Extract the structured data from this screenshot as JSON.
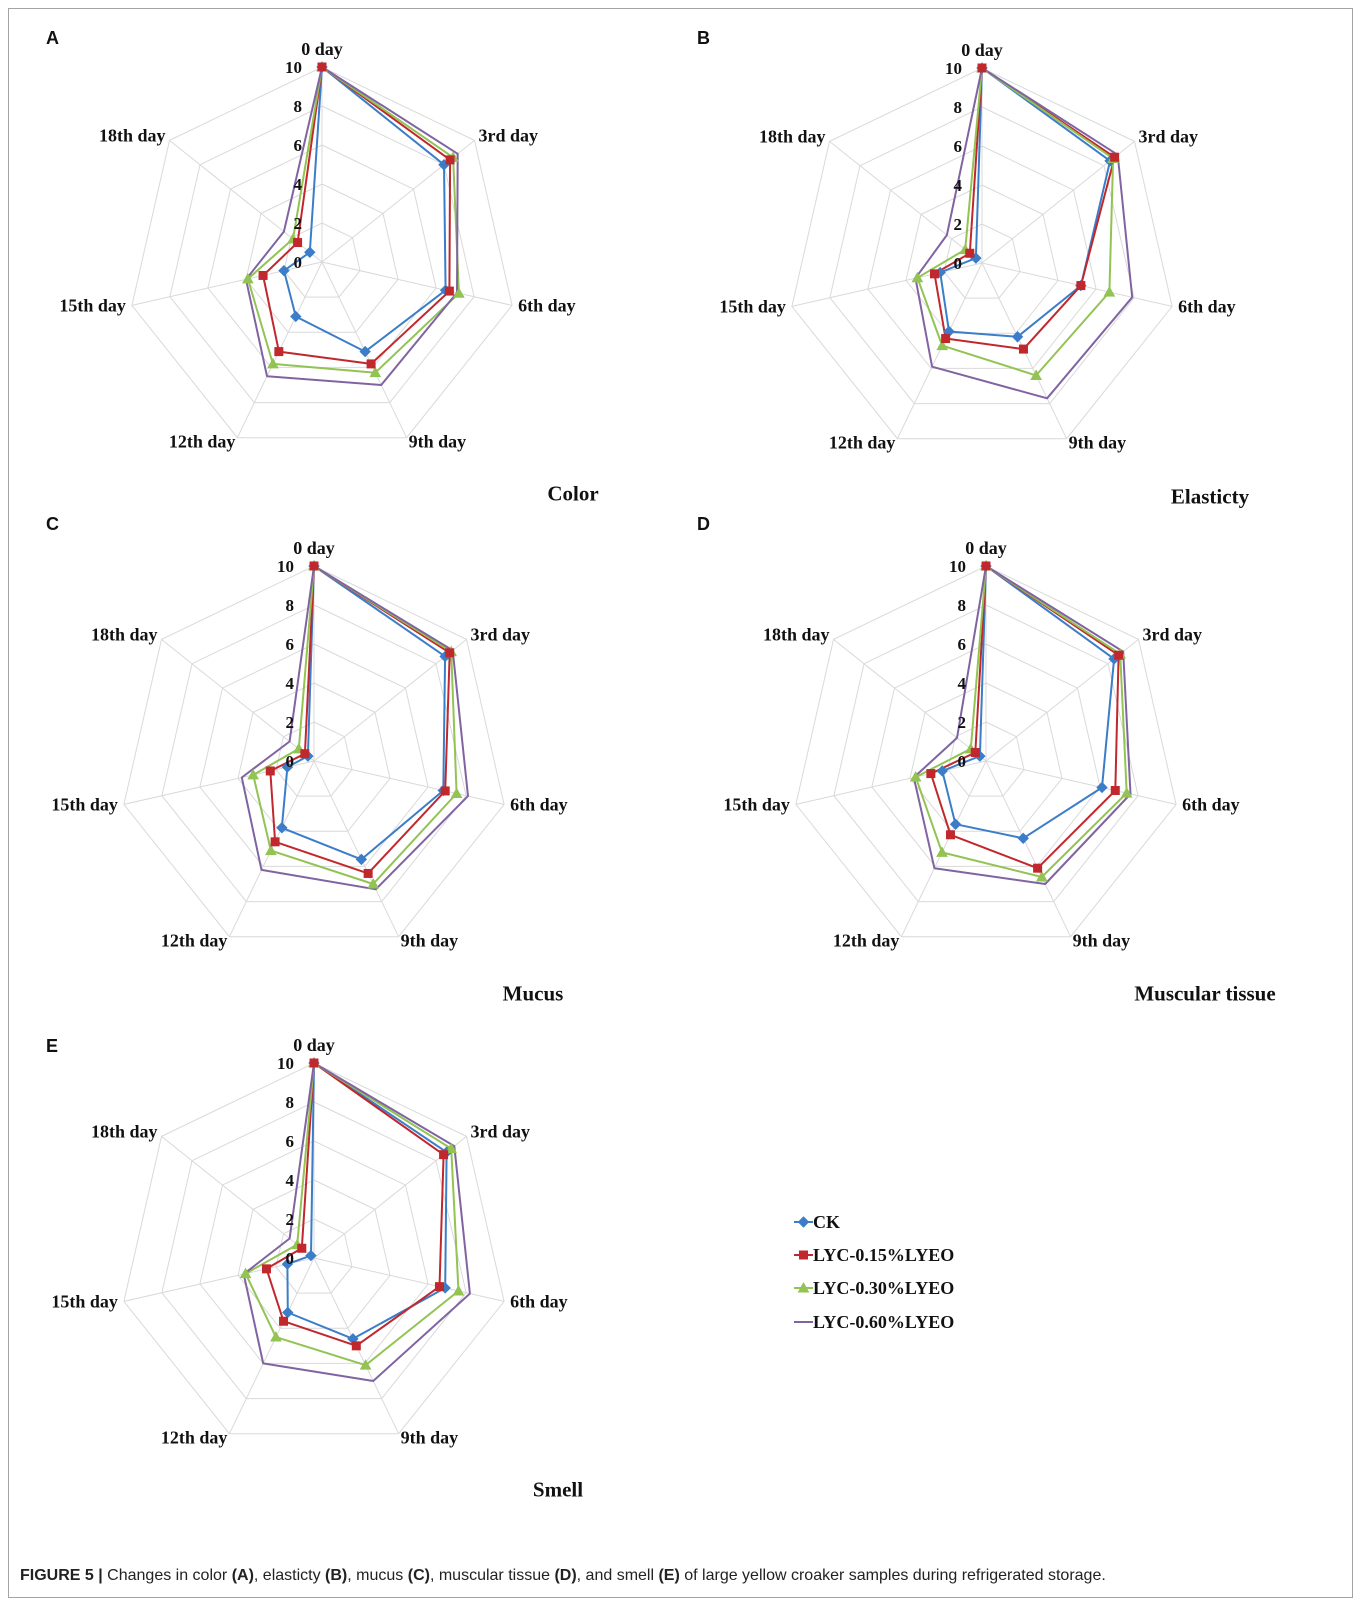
{
  "figure": {
    "caption": [
      {
        "text": "FIGURE 5 |",
        "bold": true
      },
      {
        "text": " Changes in color ",
        "bold": false
      },
      {
        "text": "(A)",
        "bold": true
      },
      {
        "text": ", elasticty ",
        "bold": false
      },
      {
        "text": "(B)",
        "bold": true
      },
      {
        "text": ", mucus ",
        "bold": false
      },
      {
        "text": "(C)",
        "bold": true
      },
      {
        "text": ", muscular tissue ",
        "bold": false
      },
      {
        "text": "(D)",
        "bold": true
      },
      {
        "text": ", and smell ",
        "bold": false
      },
      {
        "text": "(E)",
        "bold": true
      },
      {
        "text": " of large yellow croaker samples during refrigerated storage.",
        "bold": false
      }
    ]
  },
  "legend": {
    "placement": "bottom-right",
    "entries": [
      {
        "name": "CK",
        "color": "#3b7dc8",
        "marker": "diamond"
      },
      {
        "name": "LYC-0.15%LYEO",
        "color": "#c0282d",
        "marker": "square"
      },
      {
        "name": "LYC-0.30%LYEO",
        "color": "#92c353",
        "marker": "triangle"
      },
      {
        "name": "LYC-0.60%LYEO",
        "color": "#8064a2",
        "marker": "none"
      }
    ]
  },
  "chart_data": [
    {
      "type": "radar",
      "panel": "A",
      "title": "Color",
      "categories": [
        "0 day",
        "3rd day",
        "6th day",
        "9th day",
        "12th day",
        "15th day",
        "18th day"
      ],
      "rlim": [
        0,
        10
      ],
      "ticks": [
        0,
        2,
        4,
        6,
        8,
        10
      ],
      "grid": true,
      "series": [
        {
          "name": "CK",
          "values": [
            10,
            8.0,
            6.5,
            5.1,
            3.1,
            2.0,
            0.8
          ]
        },
        {
          "name": "LYC-0.15%LYEO",
          "values": [
            10,
            8.4,
            6.7,
            5.8,
            5.1,
            3.1,
            1.6
          ]
        },
        {
          "name": "LYC-0.30%LYEO",
          "values": [
            10,
            8.6,
            7.2,
            6.3,
            5.8,
            3.9,
            1.9
          ]
        },
        {
          "name": "LYC-0.60%LYEO",
          "values": [
            10,
            8.9,
            7.1,
            7.0,
            6.5,
            4.0,
            2.5
          ]
        }
      ]
    },
    {
      "type": "radar",
      "panel": "B",
      "title": "Elasticty",
      "categories": [
        "0 day",
        "3rd day",
        "6th day",
        "9th day",
        "12th day",
        "15th day",
        "18th day"
      ],
      "rlim": [
        0,
        10
      ],
      "ticks": [
        0,
        2,
        4,
        6,
        8,
        10
      ],
      "grid": true,
      "series": [
        {
          "name": "CK",
          "values": [
            10,
            8.4,
            5.2,
            4.2,
            3.9,
            2.2,
            0.4
          ]
        },
        {
          "name": "LYC-0.15%LYEO",
          "values": [
            10,
            8.7,
            5.2,
            4.9,
            4.3,
            2.5,
            0.8
          ]
        },
        {
          "name": "LYC-0.30%LYEO",
          "values": [
            10,
            8.6,
            6.7,
            6.4,
            4.7,
            3.4,
            1.1
          ]
        },
        {
          "name": "LYC-0.60%LYEO",
          "values": [
            10,
            8.9,
            7.9,
            7.7,
            5.9,
            3.5,
            2.3
          ]
        }
      ]
    },
    {
      "type": "radar",
      "panel": "C",
      "title": "Mucus",
      "categories": [
        "0 day",
        "3rd day",
        "6th day",
        "9th day",
        "12th day",
        "15th day",
        "18th day"
      ],
      "rlim": [
        0,
        10
      ],
      "ticks": [
        0,
        2,
        4,
        6,
        8,
        10
      ],
      "grid": true,
      "series": [
        {
          "name": "CK",
          "values": [
            10,
            8.6,
            6.8,
            5.6,
            3.8,
            1.4,
            0.4
          ]
        },
        {
          "name": "LYC-0.15%LYEO",
          "values": [
            10,
            8.9,
            6.9,
            6.4,
            4.6,
            2.3,
            0.6
          ]
        },
        {
          "name": "LYC-0.30%LYEO",
          "values": [
            10,
            9.0,
            7.5,
            7.0,
            5.1,
            3.2,
            1.0
          ]
        },
        {
          "name": "LYC-0.60%LYEO",
          "values": [
            10,
            9.1,
            8.1,
            7.3,
            6.2,
            3.8,
            1.6
          ]
        }
      ]
    },
    {
      "type": "radar",
      "panel": "D",
      "title": "Muscular tissue",
      "categories": [
        "0 day",
        "3rd day",
        "6th day",
        "9th day",
        "12th day",
        "15th day",
        "18th day"
      ],
      "rlim": [
        0,
        10
      ],
      "ticks": [
        0,
        2,
        4,
        6,
        8,
        10
      ],
      "grid": true,
      "series": [
        {
          "name": "CK",
          "values": [
            10,
            8.4,
            6.1,
            4.4,
            3.6,
            2.3,
            0.4
          ]
        },
        {
          "name": "LYC-0.15%LYEO",
          "values": [
            10,
            8.7,
            6.8,
            6.1,
            4.2,
            2.9,
            0.7
          ]
        },
        {
          "name": "LYC-0.30%LYEO",
          "values": [
            10,
            8.8,
            7.4,
            6.6,
            5.2,
            3.7,
            1.0
          ]
        },
        {
          "name": "LYC-0.60%LYEO",
          "values": [
            10,
            9.0,
            7.6,
            7.0,
            6.1,
            3.8,
            1.9
          ]
        }
      ]
    },
    {
      "type": "radar",
      "panel": "E",
      "title": "Smell",
      "categories": [
        "0 day",
        "3rd day",
        "6th day",
        "9th day",
        "12th day",
        "15th day",
        "18th day"
      ],
      "rlim": [
        0,
        10
      ],
      "ticks": [
        0,
        2,
        4,
        6,
        8,
        10
      ],
      "grid": true,
      "series": [
        {
          "name": "CK",
          "values": [
            10,
            8.7,
            6.9,
            4.6,
            3.1,
            1.4,
            0.2
          ]
        },
        {
          "name": "LYC-0.15%LYEO",
          "values": [
            10,
            8.5,
            6.6,
            5.0,
            3.6,
            2.5,
            0.8
          ]
        },
        {
          "name": "LYC-0.30%LYEO",
          "values": [
            10,
            9.0,
            7.6,
            6.1,
            4.5,
            3.6,
            1.1
          ]
        },
        {
          "name": "LYC-0.60%LYEO",
          "values": [
            10,
            9.2,
            8.2,
            7.0,
            6.0,
            3.7,
            1.6
          ]
        }
      ]
    }
  ]
}
